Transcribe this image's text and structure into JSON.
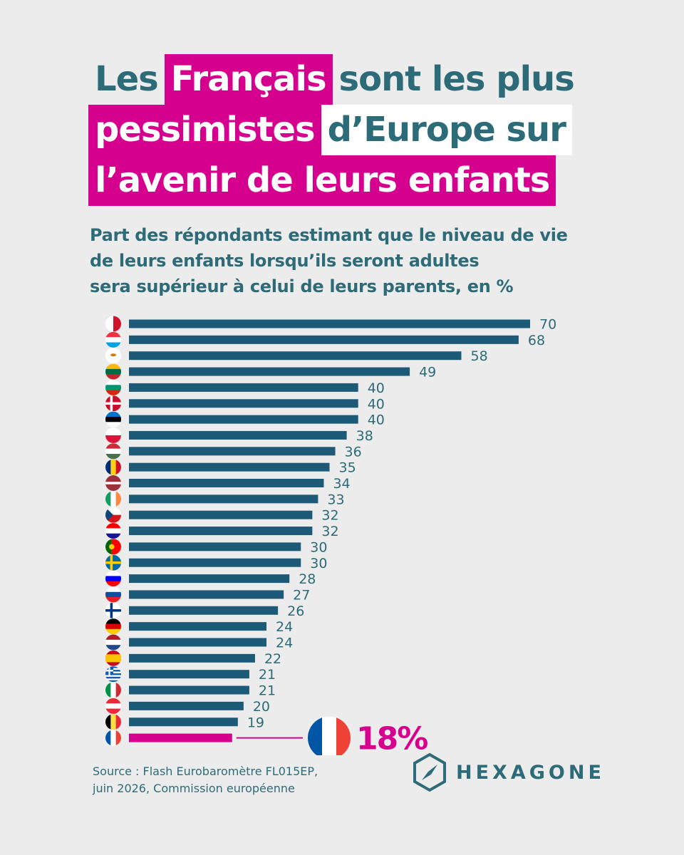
{
  "title": {
    "lines": [
      [
        {
          "text": "Les",
          "style": "plain"
        },
        {
          "text": "Français",
          "style": "hl"
        },
        {
          "text": "sont les plus",
          "style": "plain"
        }
      ],
      [
        {
          "text": "pessimistes",
          "style": "hl"
        },
        {
          "text": "d’Europe sur",
          "style": "bx"
        }
      ],
      [
        {
          "text": "l’avenir de leurs enfants",
          "style": "hl"
        }
      ]
    ]
  },
  "subtitle": {
    "line1": "Part des répondants estimant que le niveau de vie",
    "line2": "de leurs enfants lorsqu’ils seront adultes",
    "line3": "sera supérieur à celui de leurs parents, en %"
  },
  "colors": {
    "bar": "#1c5a78",
    "highlight": "#d6008e",
    "text": "#2d6b78",
    "background": "#ececec"
  },
  "chart_data": {
    "type": "bar",
    "orientation": "horizontal",
    "categories": [
      "malta-flag",
      "luxembourg-flag",
      "cyprus-flag",
      "lithuania-flag",
      "bulgaria-flag",
      "denmark-flag",
      "estonia-flag",
      "poland-flag",
      "hungary-flag",
      "romania-flag",
      "latvia-flag",
      "ireland-flag",
      "czechia-flag",
      "croatia-flag",
      "portugal-flag",
      "sweden-flag",
      "slovenia-flag",
      "slovakia-flag",
      "finland-flag",
      "germany-flag",
      "netherlands-flag",
      "spain-flag",
      "greece-flag",
      "italy-flag",
      "austria-flag",
      "belgium-flag",
      "france-flag"
    ],
    "values": [
      70,
      68,
      58,
      49,
      40,
      40,
      40,
      38,
      36,
      35,
      34,
      33,
      32,
      32,
      30,
      30,
      28,
      27,
      26,
      24,
      24,
      22,
      21,
      21,
      20,
      19,
      18
    ],
    "labels": [
      "70",
      "68",
      "58",
      "49",
      "40",
      "40",
      "40",
      "38",
      "36",
      "35",
      "34",
      "33",
      "32",
      "32",
      "30",
      "30",
      "28",
      "27",
      "26",
      "24",
      "24",
      "22",
      "21",
      "21",
      "20",
      "19",
      "18%"
    ],
    "highlight_index": 26,
    "xlim": [
      0,
      70
    ],
    "grid": false,
    "legend": "none"
  },
  "source": {
    "line1": "Source : Flash Eurobaromètre FL015EP,",
    "line2": "juin 2026, Commission européenne"
  },
  "logo": {
    "text": "HEXAGONE",
    "icon": "compass-hexagon-icon"
  }
}
